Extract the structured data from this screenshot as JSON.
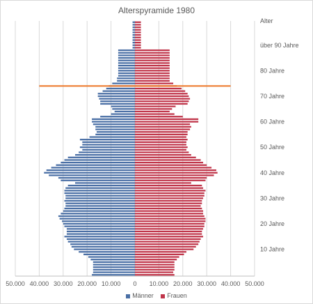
{
  "chart_data": {
    "type": "bar",
    "title": "Alterspyramide 1980",
    "xlim": [
      -50000,
      50000
    ],
    "x_tick_values": [
      -50000,
      -40000,
      -30000,
      -20000,
      -10000,
      0,
      10000,
      20000,
      30000,
      40000,
      50000
    ],
    "x_tick_labels": [
      "50.000",
      "40.000",
      "30.000",
      "20.000",
      "10.000",
      "0",
      "10.000",
      "20.000",
      "30.000",
      "40.000",
      "50.000"
    ],
    "age_header": "Alter",
    "age_labels": [
      {
        "age": 10,
        "label": "10 Jahre"
      },
      {
        "age": 20,
        "label": "20 Jahre"
      },
      {
        "age": 30,
        "label": "30 Jahre"
      },
      {
        "age": 40,
        "label": "40 Jahre"
      },
      {
        "age": 50,
        "label": "50 Jahre"
      },
      {
        "age": 60,
        "label": "60 Jahre"
      },
      {
        "age": 70,
        "label": "70 Jahre"
      },
      {
        "age": 80,
        "label": "80 Jahre"
      },
      {
        "age": 90,
        "label": "über 90 Jahre"
      }
    ],
    "reference_line": {
      "age": 74,
      "from": -40000,
      "to": 40000,
      "color": "#ed7d31"
    },
    "colors": {
      "maenner": "#4a6fa5",
      "frauen": "#c0354a"
    },
    "ages": [
      0,
      1,
      2,
      3,
      4,
      5,
      6,
      7,
      8,
      9,
      10,
      11,
      12,
      13,
      14,
      15,
      16,
      17,
      18,
      19,
      20,
      21,
      22,
      23,
      24,
      25,
      26,
      27,
      28,
      29,
      30,
      31,
      32,
      33,
      34,
      35,
      36,
      37,
      38,
      39,
      40,
      41,
      42,
      43,
      44,
      45,
      46,
      47,
      48,
      49,
      50,
      51,
      52,
      53,
      54,
      55,
      56,
      57,
      58,
      59,
      60,
      61,
      62,
      63,
      64,
      65,
      66,
      67,
      68,
      69,
      70,
      71,
      72,
      73,
      74,
      75,
      76,
      77,
      78,
      79,
      80,
      81,
      82,
      83,
      84,
      85,
      86,
      87,
      88,
      89,
      90,
      91,
      92,
      93,
      94,
      95,
      96,
      97,
      98,
      99
    ],
    "series": [
      {
        "name": "Männer",
        "values": [
          -18000,
          -17500,
          -17500,
          -17500,
          -17500,
          -17500,
          -18500,
          -19500,
          -21500,
          -23500,
          -25500,
          -26500,
          -27000,
          -28000,
          -28500,
          -29500,
          -28500,
          -28500,
          -28500,
          -29500,
          -30000,
          -30500,
          -31500,
          -32000,
          -31000,
          -30000,
          -29500,
          -29000,
          -29000,
          -29500,
          -29000,
          -29000,
          -29500,
          -29500,
          -29000,
          -28000,
          -25000,
          -31000,
          -32000,
          -36000,
          -38000,
          -37000,
          -35000,
          -33000,
          -31000,
          -29500,
          -28000,
          -25000,
          -23500,
          -22000,
          -23000,
          -22000,
          -22000,
          -23000,
          -19000,
          -16500,
          -16000,
          -16500,
          -16500,
          -17500,
          -18000,
          -18000,
          -14500,
          -10000,
          -8500,
          -9500,
          -10000,
          -14500,
          -14500,
          -15000,
          -15500,
          -15500,
          -13500,
          -12000,
          -11000,
          -9500,
          -7500,
          -7500,
          -7000,
          -7000,
          -7000,
          -7000,
          -7000,
          -7000,
          -7000,
          -7000,
          -7000,
          -7000,
          -7000,
          -1000,
          -1000,
          -1000,
          -1000,
          -1000,
          -1000,
          -1000,
          -1000,
          -1000,
          -1000,
          -1000
        ]
      },
      {
        "name": "Frauen",
        "values": [
          16500,
          16000,
          16500,
          16500,
          16500,
          16500,
          17500,
          18500,
          20500,
          21500,
          24500,
          25500,
          26500,
          27000,
          27500,
          28500,
          28000,
          28000,
          28500,
          29000,
          29000,
          29500,
          29500,
          29000,
          28500,
          28500,
          28000,
          27500,
          28000,
          28000,
          28500,
          29000,
          29000,
          29500,
          28500,
          28000,
          23500,
          29500,
          30000,
          33000,
          34500,
          34000,
          32000,
          30000,
          28500,
          27500,
          25500,
          23500,
          22500,
          21500,
          22000,
          21500,
          21500,
          22000,
          21500,
          22000,
          22000,
          23000,
          23500,
          23000,
          26500,
          26500,
          20000,
          16500,
          14500,
          15500,
          17000,
          22000,
          22500,
          23000,
          22500,
          22000,
          21000,
          19500,
          17500,
          16000,
          14500,
          14500,
          14500,
          14500,
          14500,
          14500,
          14500,
          14500,
          14500,
          14500,
          14500,
          14500,
          14500,
          2500,
          2500,
          2500,
          2500,
          2500,
          2500,
          2500,
          2500,
          2500,
          2500,
          2500
        ]
      }
    ]
  }
}
